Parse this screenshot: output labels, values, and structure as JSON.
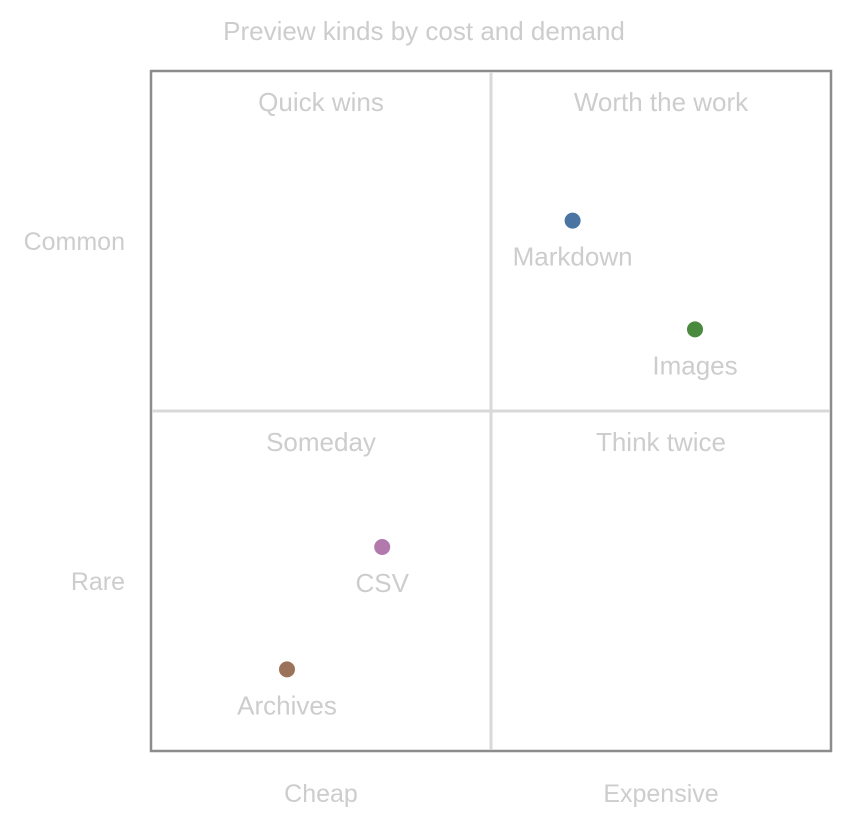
{
  "chart_data": {
    "type": "scatter",
    "title": "Preview kinds by cost and demand",
    "xlabel": "",
    "ylabel": "",
    "x_categories": [
      "Cheap",
      "Expensive"
    ],
    "y_categories": [
      "Rare",
      "Common"
    ],
    "xlim": [
      0,
      1
    ],
    "ylim": [
      0,
      1
    ],
    "grid": false,
    "quadrants": {
      "top_left": "Quick wins",
      "top_right": "Worth the work",
      "bottom_left": "Someday",
      "bottom_right": "Think twice"
    },
    "points": [
      {
        "label": "Markdown",
        "x": 0.62,
        "y": 0.78,
        "color": "#4a74a1"
      },
      {
        "label": "Images",
        "x": 0.8,
        "y": 0.62,
        "color": "#4a8a3e"
      },
      {
        "label": "CSV",
        "x": 0.34,
        "y": 0.3,
        "color": "#b27aac"
      },
      {
        "label": "Archives",
        "x": 0.2,
        "y": 0.12,
        "color": "#9b735b"
      }
    ]
  }
}
